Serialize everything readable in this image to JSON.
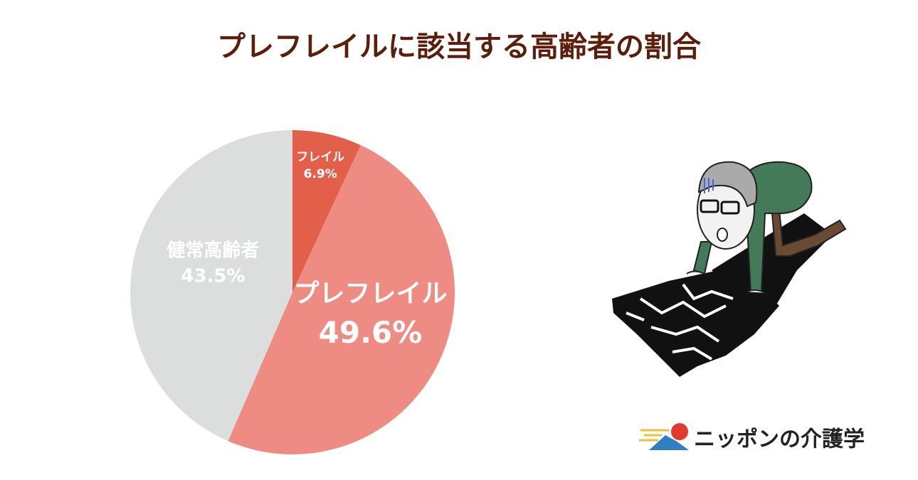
{
  "chart_data": {
    "type": "pie",
    "title": "プレフレイルに該当する高齢者の割合",
    "categories": [
      "フレイル",
      "プレフレイル",
      "健常高齢者"
    ],
    "values": [
      6.9,
      49.6,
      43.5
    ],
    "value_labels": [
      "6.9%",
      "49.6%",
      "43.5%"
    ],
    "colors": [
      "#e2604a",
      "#ee8c84",
      "#dcdddd"
    ],
    "start_angle": 0,
    "direction": "clockwise"
  },
  "brand": "ニッポンの介護学"
}
